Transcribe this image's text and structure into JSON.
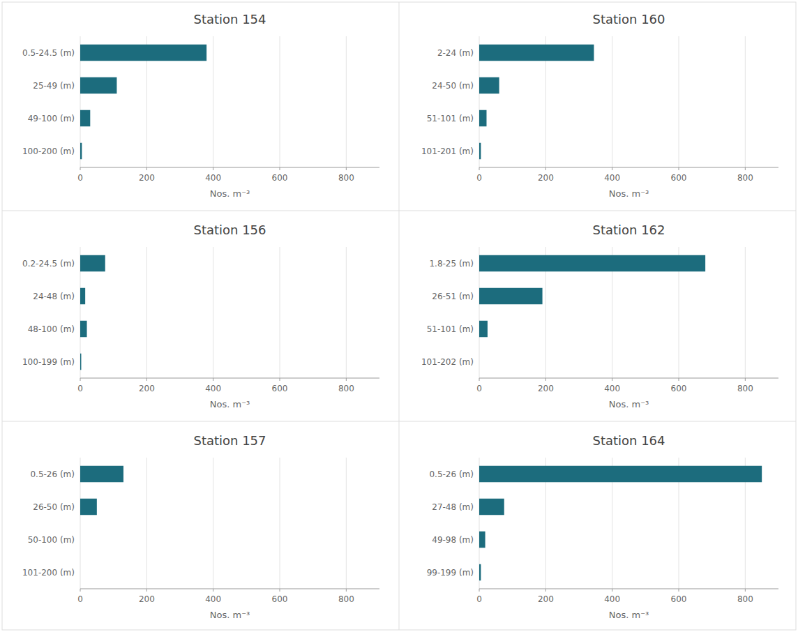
{
  "chart_data": [
    {
      "type": "bar",
      "orientation": "horizontal",
      "title": "Station 154",
      "categories": [
        "0.5-24.5 (m)",
        "25-49 (m)",
        "49-100 (m)",
        "100-200 (m)"
      ],
      "values": [
        380,
        110,
        30,
        5
      ],
      "color": "#1c6c7d",
      "xlabel": "Nos. m⁻³",
      "xlim": [
        0,
        900
      ],
      "xticks": [
        0,
        200,
        400,
        600,
        800
      ],
      "grid": true
    },
    {
      "type": "bar",
      "orientation": "horizontal",
      "title": "Station 160",
      "categories": [
        "2-24 (m)",
        "24-50 (m)",
        "51-101 (m)",
        "101-201 (m)"
      ],
      "values": [
        345,
        60,
        22,
        5
      ],
      "color": "#1c6c7d",
      "xlabel": "Nos. m⁻³",
      "xlim": [
        0,
        900
      ],
      "xticks": [
        0,
        200,
        400,
        600,
        800
      ],
      "grid": true
    },
    {
      "type": "bar",
      "orientation": "horizontal",
      "title": "Station 156",
      "categories": [
        "0.2-24.5 (m)",
        "24-48 (m)",
        "48-100 (m)",
        "100-199 (m)"
      ],
      "values": [
        75,
        15,
        20,
        3
      ],
      "color": "#1c6c7d",
      "xlabel": "Nos. m⁻³",
      "xlim": [
        0,
        900
      ],
      "xticks": [
        0,
        200,
        400,
        600,
        800
      ],
      "grid": true
    },
    {
      "type": "bar",
      "orientation": "horizontal",
      "title": "Station 162",
      "categories": [
        "1.8-25 (m)",
        "26-51 (m)",
        "51-101 (m)",
        "101-202 (m)"
      ],
      "values": [
        680,
        190,
        25,
        0
      ],
      "color": "#1c6c7d",
      "xlabel": "Nos. m⁻³",
      "xlim": [
        0,
        900
      ],
      "xticks": [
        0,
        200,
        400,
        600,
        800
      ],
      "grid": true
    },
    {
      "type": "bar",
      "orientation": "horizontal",
      "title": "Station 157",
      "categories": [
        "0.5-26 (m)",
        "26-50 (m)",
        "50-100 (m)",
        "101-200 (m)"
      ],
      "values": [
        130,
        50,
        0,
        0
      ],
      "color": "#1c6c7d",
      "xlabel": "Nos. m⁻³",
      "xlim": [
        0,
        900
      ],
      "xticks": [
        0,
        200,
        400,
        600,
        800
      ],
      "grid": true
    },
    {
      "type": "bar",
      "orientation": "horizontal",
      "title": "Station 164",
      "categories": [
        "0.5-26 (m)",
        "27-48 (m)",
        "49-98 (m)",
        "99-199 (m)"
      ],
      "values": [
        850,
        75,
        18,
        5
      ],
      "color": "#1c6c7d",
      "xlabel": "Nos. m⁻³",
      "xlim": [
        0,
        900
      ],
      "xticks": [
        0,
        200,
        400,
        600,
        800
      ],
      "grid": true
    }
  ]
}
